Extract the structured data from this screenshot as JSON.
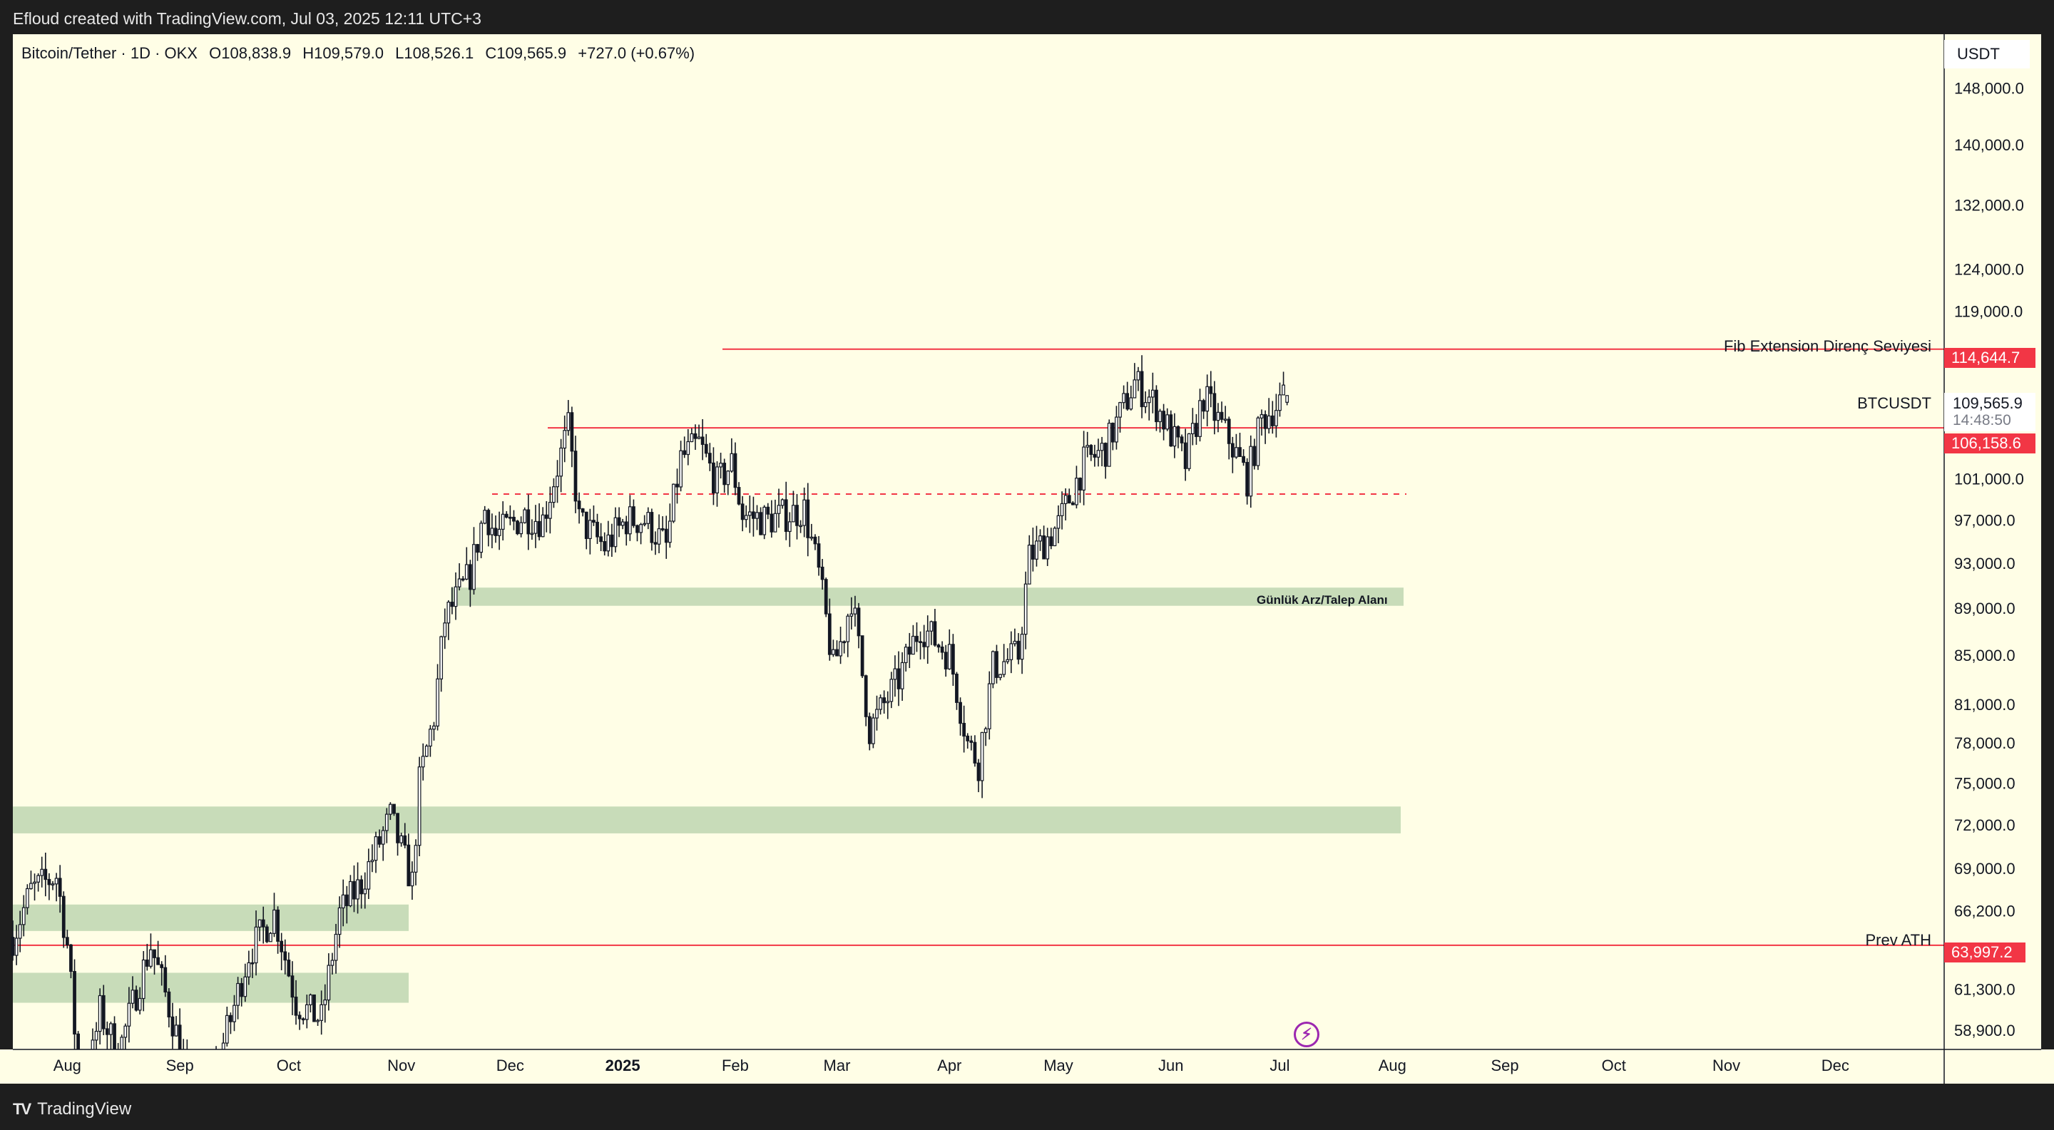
{
  "header": {
    "caption": "Efloud created with TradingView.com, Jul 03, 2025 12:11 UTC+3"
  },
  "footer": {
    "brand": "TradingView"
  },
  "legend": {
    "symbol": "Bitcoin/Tether · 1D · OKX",
    "open": "O108,838.9",
    "high": "H109,579.0",
    "low": "L108,526.1",
    "close": "C109,565.9",
    "change": "+727.0 (+0.67%)"
  },
  "currency": "USDT",
  "current": {
    "symbol": "BTCUSDT",
    "price": "109,565.9",
    "countdown": "14:48:50"
  },
  "levels": {
    "fib": {
      "label": "Fib Extension Direnç Seviyesi",
      "price": "114,644.7",
      "value": 114644.7
    },
    "mid": {
      "price": "106,158.6",
      "value": 106158.6
    },
    "prev_ath": {
      "label": "Prev ATH",
      "price": "63,997.2",
      "value": 63997.2
    },
    "dashed": {
      "value": 99500
    }
  },
  "zones": {
    "daily": {
      "label": "Günlük Arz/Talep Alanı",
      "low": 89200,
      "high": 90800
    },
    "z72": {
      "low": 71400,
      "high": 73300
    },
    "z66": {
      "low": 64900,
      "high": 66600
    },
    "z61": {
      "low": 60500,
      "high": 62300
    }
  },
  "colors": {
    "background": "#fffee6",
    "level_line": "#f23645",
    "zone": "#c8dcb9",
    "candle": "#131722"
  },
  "chart_data": {
    "type": "candlestick",
    "title": "Bitcoin/Tether · 1D · OKX",
    "scale": "log",
    "ylim": [
      57800,
      156000
    ],
    "y_ticks": [
      {
        "value": 148000,
        "label": "148,000.0"
      },
      {
        "value": 140000,
        "label": "140,000.0"
      },
      {
        "value": 132000,
        "label": "132,000.0"
      },
      {
        "value": 124000,
        "label": "124,000.0"
      },
      {
        "value": 119000,
        "label": "119,000.0"
      },
      {
        "value": 101000,
        "label": "101,000.0"
      },
      {
        "value": 97000,
        "label": "97,000.0"
      },
      {
        "value": 93000,
        "label": "93,000.0"
      },
      {
        "value": 89000,
        "label": "89,000.0"
      },
      {
        "value": 85000,
        "label": "85,000.0"
      },
      {
        "value": 81000,
        "label": "81,000.0"
      },
      {
        "value": 78000,
        "label": "78,000.0"
      },
      {
        "value": 75000,
        "label": "75,000.0"
      },
      {
        "value": 72000,
        "label": "72,000.0"
      },
      {
        "value": 69000,
        "label": "69,000.0"
      },
      {
        "value": 66200,
        "label": "66,200.0"
      },
      {
        "value": 61300,
        "label": "61,300.0"
      },
      {
        "value": 58900,
        "label": "58,900.0"
      }
    ],
    "x_range": [
      "2024-07-17",
      "2025-12-31"
    ],
    "x_ticks": [
      {
        "date": "2024-08-01",
        "label": "Aug",
        "bold": false
      },
      {
        "date": "2024-09-01",
        "label": "Sep",
        "bold": false
      },
      {
        "date": "2024-10-01",
        "label": "Oct",
        "bold": false
      },
      {
        "date": "2024-11-01",
        "label": "Nov",
        "bold": false
      },
      {
        "date": "2024-12-01",
        "label": "Dec",
        "bold": false
      },
      {
        "date": "2025-01-01",
        "label": "2025",
        "bold": true
      },
      {
        "date": "2025-02-01",
        "label": "Feb",
        "bold": false
      },
      {
        "date": "2025-03-01",
        "label": "Mar",
        "bold": false
      },
      {
        "date": "2025-04-01",
        "label": "Apr",
        "bold": false
      },
      {
        "date": "2025-05-01",
        "label": "May",
        "bold": false
      },
      {
        "date": "2025-06-01",
        "label": "Jun",
        "bold": false
      },
      {
        "date": "2025-07-01",
        "label": "Jul",
        "bold": false
      },
      {
        "date": "2025-08-01",
        "label": "Aug",
        "bold": false
      },
      {
        "date": "2025-09-01",
        "label": "Sep",
        "bold": false
      },
      {
        "date": "2025-10-01",
        "label": "Oct",
        "bold": false
      },
      {
        "date": "2025-11-01",
        "label": "Nov",
        "bold": false
      },
      {
        "date": "2025-12-01",
        "label": "Dec",
        "bold": false
      }
    ],
    "anchors": [
      [
        "2024-07-17",
        64500
      ],
      [
        "2024-07-22",
        67500
      ],
      [
        "2024-07-29",
        68500
      ],
      [
        "2024-08-01",
        64000
      ],
      [
        "2024-08-05",
        54000
      ],
      [
        "2024-08-10",
        60000
      ],
      [
        "2024-08-15",
        57500
      ],
      [
        "2024-08-24",
        64000
      ],
      [
        "2024-09-01",
        58000
      ],
      [
        "2024-09-06",
        53500
      ],
      [
        "2024-09-15",
        59500
      ],
      [
        "2024-09-20",
        63500
      ],
      [
        "2024-09-27",
        66000
      ],
      [
        "2024-10-03",
        60500
      ],
      [
        "2024-10-10",
        59500
      ],
      [
        "2024-10-15",
        66000
      ],
      [
        "2024-10-21",
        68000
      ],
      [
        "2024-10-29",
        72500
      ],
      [
        "2024-11-04",
        68000
      ],
      [
        "2024-11-06",
        75000
      ],
      [
        "2024-11-10",
        80000
      ],
      [
        "2024-11-13",
        88000
      ],
      [
        "2024-11-20",
        92000
      ],
      [
        "2024-11-24",
        98000
      ],
      [
        "2024-11-27",
        95500
      ],
      [
        "2024-12-05",
        97500
      ],
      [
        "2024-12-10",
        97000
      ],
      [
        "2024-12-17",
        106000
      ],
      [
        "2024-12-20",
        97000
      ],
      [
        "2024-12-27",
        94500
      ],
      [
        "2025-01-02",
        97000
      ],
      [
        "2025-01-07",
        97000
      ],
      [
        "2025-01-13",
        94500
      ],
      [
        "2025-01-17",
        103000
      ],
      [
        "2025-01-22",
        104500
      ],
      [
        "2025-01-27",
        100500
      ],
      [
        "2025-01-31",
        102500
      ],
      [
        "2025-02-03",
        97500
      ],
      [
        "2025-02-10",
        97000
      ],
      [
        "2025-02-20",
        98000
      ],
      [
        "2025-02-24",
        92000
      ],
      [
        "2025-02-28",
        84000
      ],
      [
        "2025-03-03",
        87000
      ],
      [
        "2025-03-05",
        90000
      ],
      [
        "2025-03-10",
        79000
      ],
      [
        "2025-03-18",
        83000
      ],
      [
        "2025-03-24",
        87500
      ],
      [
        "2025-04-01",
        85000
      ],
      [
        "2025-04-06",
        78000
      ],
      [
        "2025-04-09",
        76500
      ],
      [
        "2025-04-13",
        84000
      ],
      [
        "2025-04-20",
        85000
      ],
      [
        "2025-04-23",
        93500
      ],
      [
        "2025-05-01",
        96500
      ],
      [
        "2025-05-08",
        102500
      ],
      [
        "2025-05-14",
        104000
      ],
      [
        "2025-05-22",
        111000
      ],
      [
        "2025-05-28",
        108500
      ],
      [
        "2025-06-05",
        102500
      ],
      [
        "2025-06-10",
        109500
      ],
      [
        "2025-06-17",
        105000
      ],
      [
        "2025-06-22",
        101000
      ],
      [
        "2025-06-26",
        107000
      ],
      [
        "2025-07-03",
        109566
      ]
    ],
    "last": {
      "date": "2025-07-03",
      "open": 108838.9,
      "high": 109579.0,
      "low": 108526.1,
      "close": 109565.9
    }
  }
}
